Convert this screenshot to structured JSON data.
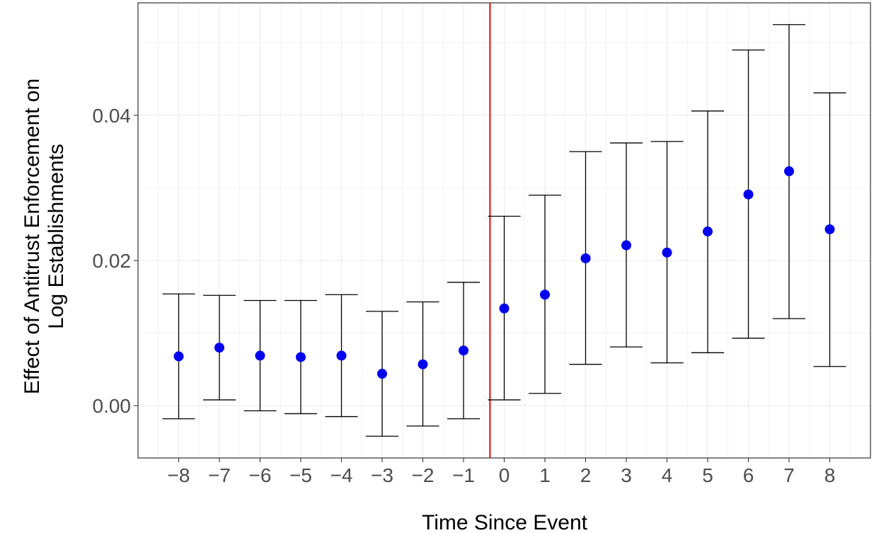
{
  "chart_data": {
    "type": "scatter",
    "subtype": "coefficient plot with error bars",
    "title": "",
    "xlabel": "Time Since Event",
    "ylabel": [
      "Effect of Antitrust Enforcement on",
      "Log Establishments"
    ],
    "x": [
      -8,
      -7,
      -6,
      -5,
      -4,
      -3,
      -2,
      -1,
      0,
      1,
      2,
      3,
      4,
      5,
      6,
      7,
      8
    ],
    "x_tick_labels": [
      "−8",
      "−7",
      "−6",
      "−5",
      "−4",
      "−3",
      "−2",
      "−1",
      "0",
      "1",
      "2",
      "3",
      "4",
      "5",
      "6",
      "7",
      "8"
    ],
    "y_ticks": [
      0.0,
      0.02,
      0.04
    ],
    "y_tick_labels": [
      "0.00",
      "0.02",
      "0.04"
    ],
    "xlim": [
      -9.0,
      9.0
    ],
    "ylim": [
      -0.0072,
      0.0555
    ],
    "estimate": [
      0.0068,
      0.008,
      0.0069,
      0.0067,
      0.0069,
      0.0044,
      0.0057,
      0.0076,
      0.0134,
      0.0153,
      0.0203,
      0.0221,
      0.0211,
      0.024,
      0.0291,
      0.0323,
      0.0243
    ],
    "ci_lower": [
      -0.0018,
      0.0008,
      -0.0007,
      -0.0011,
      -0.0015,
      -0.0042,
      -0.0028,
      -0.0018,
      0.0008,
      0.0017,
      0.0057,
      0.0081,
      0.0059,
      0.0073,
      0.0093,
      0.012,
      0.0054
    ],
    "ci_upper": [
      0.0154,
      0.0152,
      0.0145,
      0.0145,
      0.0153,
      0.013,
      0.0143,
      0.017,
      0.0261,
      0.029,
      0.035,
      0.0362,
      0.0364,
      0.0406,
      0.049,
      0.0525,
      0.0431
    ],
    "reference_line_x": -0.35,
    "grid": true,
    "point_color": "#0000ee",
    "errorbar_color": "#000000",
    "reference_line_color": "#e41a1c",
    "grid_color": "#ebebeb"
  }
}
